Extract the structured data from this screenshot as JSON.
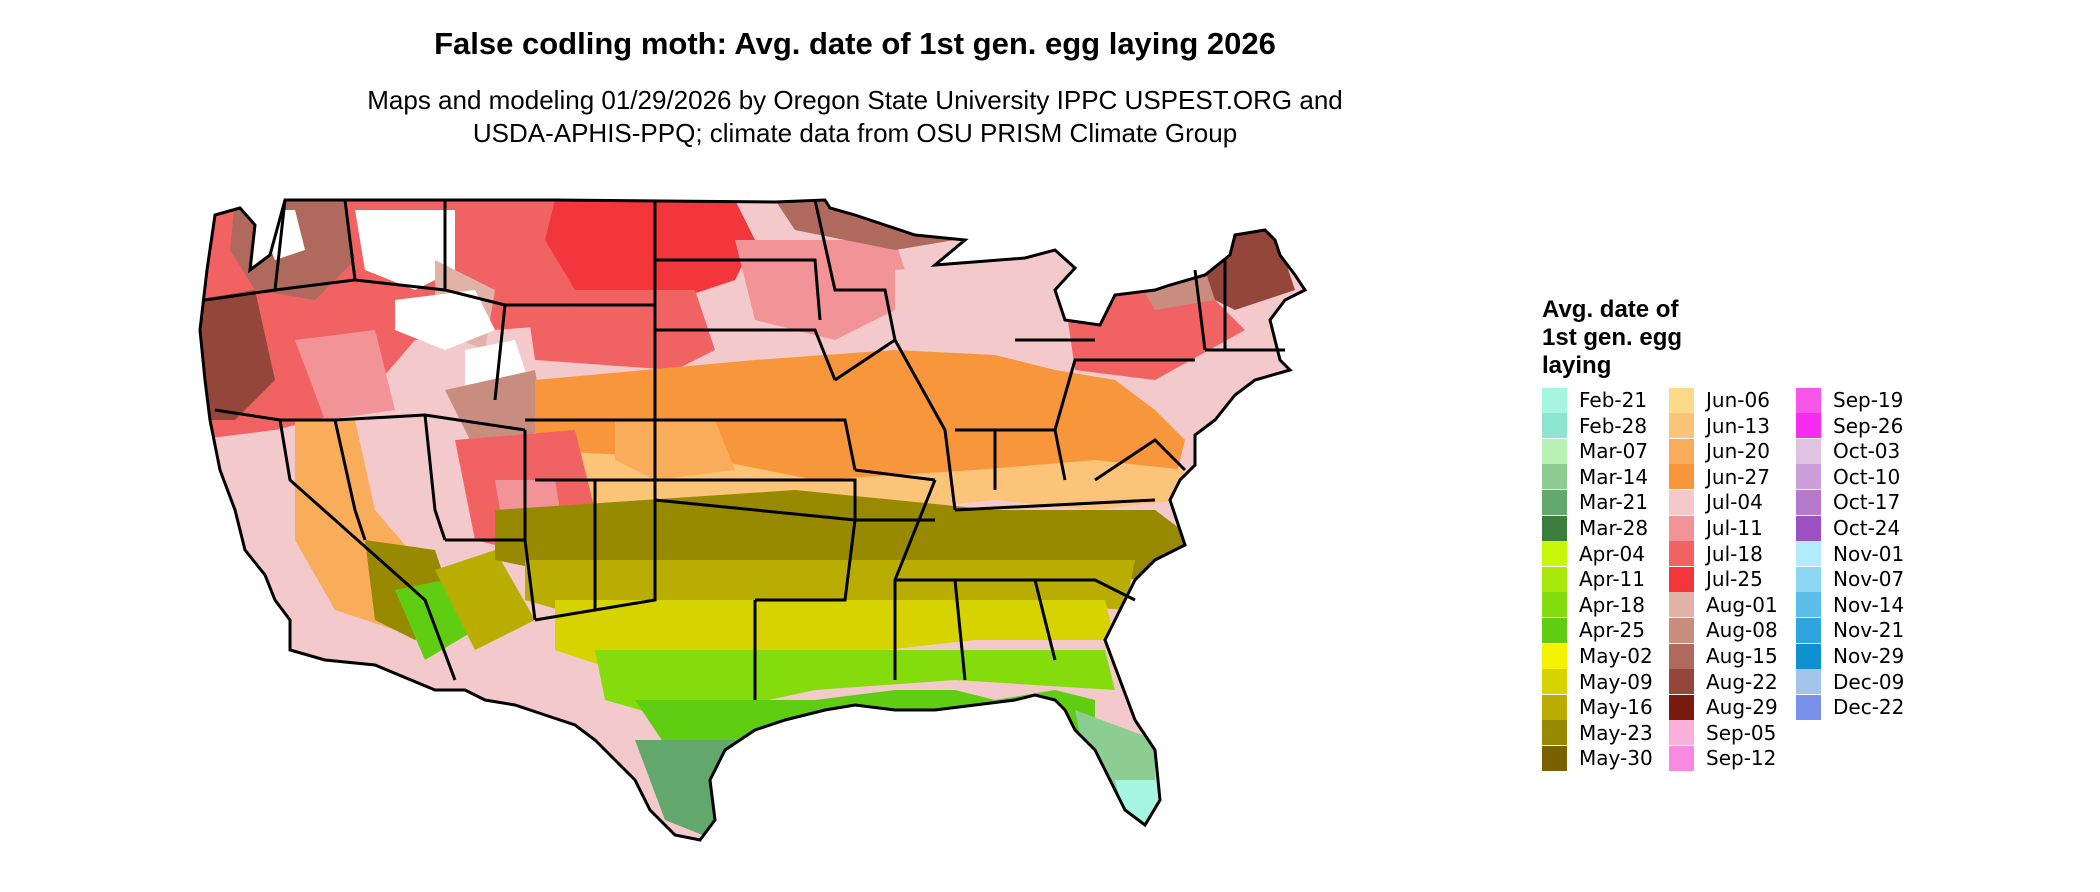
{
  "title": "False codling moth: Avg. date of 1st gen. egg laying 2026",
  "subtitle_line1": "Maps and modeling 01/29/2026 by Oregon State University IPPC USPEST.ORG and",
  "subtitle_line2": "USDA-APHIS-PPQ; climate data from OSU PRISM Climate Group",
  "legend": {
    "title_lines": [
      "Avg. date of",
      "1st gen. egg",
      "laying"
    ],
    "items": [
      {
        "label": "Feb-21",
        "color": "#a6f5e0"
      },
      {
        "label": "Feb-28",
        "color": "#8de4cf"
      },
      {
        "label": "Mar-07",
        "color": "#b7f1b6"
      },
      {
        "label": "Mar-14",
        "color": "#8ccd92"
      },
      {
        "label": "Mar-21",
        "color": "#62a86c"
      },
      {
        "label": "Mar-28",
        "color": "#3a7d3d"
      },
      {
        "label": "Apr-04",
        "color": "#c8f70c"
      },
      {
        "label": "Apr-11",
        "color": "#a8e80b"
      },
      {
        "label": "Apr-18",
        "color": "#84dc0d"
      },
      {
        "label": "Apr-25",
        "color": "#5fcd12"
      },
      {
        "label": "May-02",
        "color": "#f4f200"
      },
      {
        "label": "May-09",
        "color": "#d7d300"
      },
      {
        "label": "May-16",
        "color": "#b8ad00"
      },
      {
        "label": "May-23",
        "color": "#978a00"
      },
      {
        "label": "May-30",
        "color": "#7a6100"
      },
      {
        "label": "Jun-06",
        "color": "#fdd98a"
      },
      {
        "label": "Jun-13",
        "color": "#fcc478"
      },
      {
        "label": "Jun-20",
        "color": "#f9ad5a"
      },
      {
        "label": "Jun-27",
        "color": "#f7963a"
      },
      {
        "label": "Jul-04",
        "color": "#f3c9cb"
      },
      {
        "label": "Jul-11",
        "color": "#f29497"
      },
      {
        "label": "Jul-18",
        "color": "#f16363"
      },
      {
        "label": "Jul-25",
        "color": "#f3363b"
      },
      {
        "label": "Aug-01",
        "color": "#e0b2a8"
      },
      {
        "label": "Aug-08",
        "color": "#c98d80"
      },
      {
        "label": "Aug-15",
        "color": "#b06a5d"
      },
      {
        "label": "Aug-22",
        "color": "#95463a"
      },
      {
        "label": "Aug-29",
        "color": "#7a1c0d"
      },
      {
        "label": "Sep-05",
        "color": "#fab0d8"
      },
      {
        "label": "Sep-12",
        "color": "#f888e0"
      },
      {
        "label": "Sep-19",
        "color": "#f656e8"
      },
      {
        "label": "Sep-26",
        "color": "#f62cf0"
      },
      {
        "label": "Oct-03",
        "color": "#e0c3e0"
      },
      {
        "label": "Oct-10",
        "color": "#cc9fd8"
      },
      {
        "label": "Oct-17",
        "color": "#b67acd"
      },
      {
        "label": "Oct-24",
        "color": "#9d50bf"
      },
      {
        "label": "Nov-01",
        "color": "#b4ebfa"
      },
      {
        "label": "Nov-07",
        "color": "#8ad6f3"
      },
      {
        "label": "Nov-14",
        "color": "#5cbeea"
      },
      {
        "label": "Nov-21",
        "color": "#2ea4e0"
      },
      {
        "label": "Nov-29",
        "color": "#0f90d0"
      },
      {
        "label": "Dec-09",
        "color": "#a3c4ea"
      },
      {
        "label": "Dec-22",
        "color": "#7892eb"
      }
    ]
  }
}
